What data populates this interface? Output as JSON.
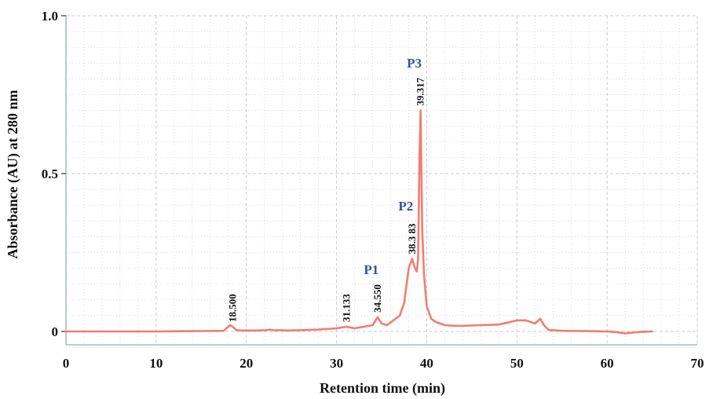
{
  "chart_data": {
    "type": "line",
    "title": "",
    "xlabel": "Retention time (min)",
    "ylabel": "Absorbance (AU) at 280 nm",
    "xlim": [
      0,
      70
    ],
    "ylim": [
      0,
      1.0
    ],
    "x_ticks": [
      0,
      10,
      20,
      30,
      40,
      50,
      60,
      70
    ],
    "x_tick_labels": [
      "0",
      "10",
      "20",
      "30",
      "40",
      "50",
      "60",
      "70"
    ],
    "y_ticks": [
      0,
      0.5,
      1.0
    ],
    "y_tick_labels": [
      "0",
      "0.5",
      "1.0"
    ],
    "grid": true,
    "colors": {
      "trace": "#f07060",
      "grid": "#c5cbe0",
      "axis": "#9aa6cc",
      "peak_label": "#3a4f9a"
    },
    "series": [
      {
        "x": [
          0,
          10,
          17.5,
          18.2,
          18.5,
          18.9,
          19.6,
          21,
          22.2,
          22.6,
          23,
          24,
          24.5,
          26,
          28,
          30,
          31.1,
          32,
          33,
          34,
          34.55,
          35,
          35.6,
          36.3,
          37,
          37.5,
          38,
          38.38,
          38.7,
          38.9,
          39.05,
          39.2,
          39.32,
          39.5,
          39.7,
          40,
          40.5,
          41,
          42,
          43,
          44,
          46,
          48,
          49,
          50,
          51,
          51.5,
          52,
          52.6,
          53,
          53.5,
          55,
          58,
          60,
          61,
          62,
          63,
          64,
          65
        ],
        "y": [
          0.0,
          0.0,
          0.002,
          0.02,
          0.015,
          0.004,
          0.003,
          0.003,
          0.004,
          0.006,
          0.004,
          0.004,
          0.003,
          0.004,
          0.006,
          0.01,
          0.015,
          0.01,
          0.015,
          0.02,
          0.045,
          0.025,
          0.02,
          0.035,
          0.05,
          0.09,
          0.2,
          0.23,
          0.2,
          0.19,
          0.23,
          0.55,
          0.7,
          0.32,
          0.18,
          0.08,
          0.04,
          0.03,
          0.02,
          0.018,
          0.018,
          0.02,
          0.022,
          0.028,
          0.035,
          0.035,
          0.03,
          0.025,
          0.04,
          0.02,
          0.005,
          0.002,
          0.001,
          0.0,
          -0.002,
          -0.006,
          -0.003,
          -0.001,
          0.0
        ]
      }
    ],
    "peak_labels": [
      {
        "rt": "18.500",
        "x": 18.5,
        "y": 0.015
      },
      {
        "rt": "31.133",
        "x": 31.133,
        "y": 0.015
      },
      {
        "rt": "34.550",
        "x": 34.55,
        "y": 0.045,
        "name": "P1"
      },
      {
        "rt": "38.3 83",
        "x": 38.383,
        "y": 0.23,
        "name": "P2"
      },
      {
        "rt": "39.317",
        "x": 39.317,
        "y": 0.7,
        "name": "P3"
      }
    ]
  }
}
